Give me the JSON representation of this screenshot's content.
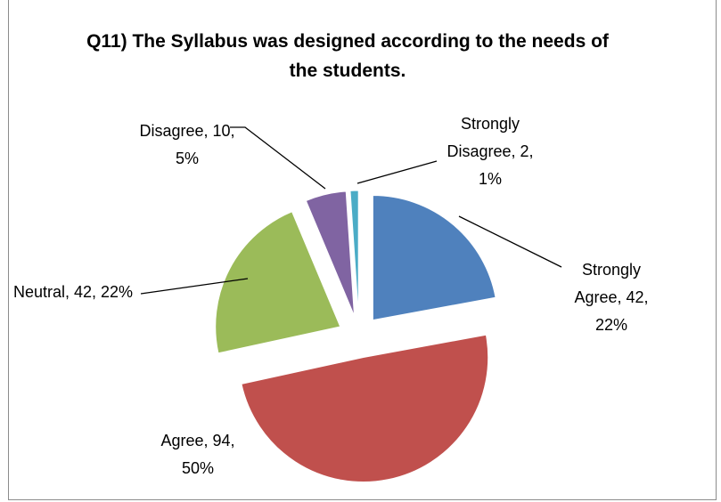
{
  "chart_data": {
    "type": "pie",
    "title": "Q11) The Syllabus was designed according to the needs of the students.",
    "values": [
      42,
      94,
      42,
      10,
      2
    ],
    "value_labels": [
      "Strongly Agree, 42, 22%",
      "Agree, 94, 50%",
      "Neutral, 42, 22%",
      "Disagree, 10, 5%",
      "Strongly Disagree, 2, 1%"
    ],
    "colors": [
      "#4f81bd",
      "#c0504d",
      "#9bbb59",
      "#8064a2",
      "#4bacc6"
    ]
  }
}
